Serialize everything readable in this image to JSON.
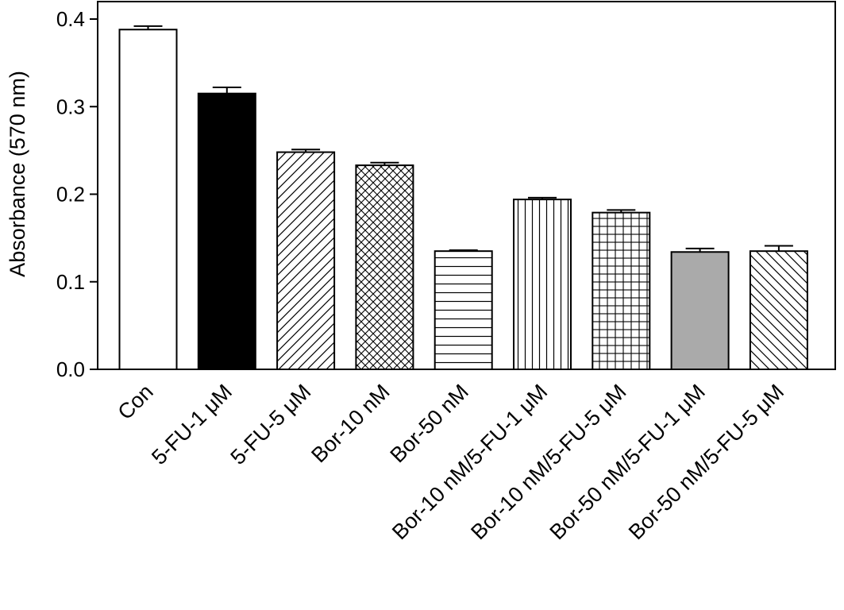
{
  "chart_data": {
    "type": "bar",
    "title": "",
    "xlabel": "",
    "ylabel": "Absorbance (570 nm)",
    "ylim": [
      0,
      0.4
    ],
    "yticks": [
      "0.0",
      "0.1",
      "0.2",
      "0.3",
      "0.4"
    ],
    "grid": false,
    "categories": [
      "Con",
      "5-FU-1  μM",
      "5-FU-5  μM",
      "Bor-10  nM",
      "Bor-50  nM",
      "Bor-10 nM/5-FU-1  μM",
      "Bor-10 nM/5-FU-5  μM",
      "Bor-50  nM/5-FU-1  μM",
      "Bor-50  nM/5-FU-5  μM"
    ],
    "values": [
      0.388,
      0.315,
      0.248,
      0.233,
      0.135,
      0.194,
      0.179,
      0.134,
      0.135
    ],
    "errors": [
      0.004,
      0.007,
      0.003,
      0.003,
      0.001,
      0.002,
      0.003,
      0.004,
      0.006
    ],
    "fills": [
      "white",
      "black",
      "diag-right",
      "crosshatch",
      "horizontal",
      "vertical",
      "grid",
      "gray",
      "diag-left"
    ],
    "colors": {
      "black": "#000000",
      "gray": "#aaaaaa",
      "white": "#ffffff"
    }
  }
}
